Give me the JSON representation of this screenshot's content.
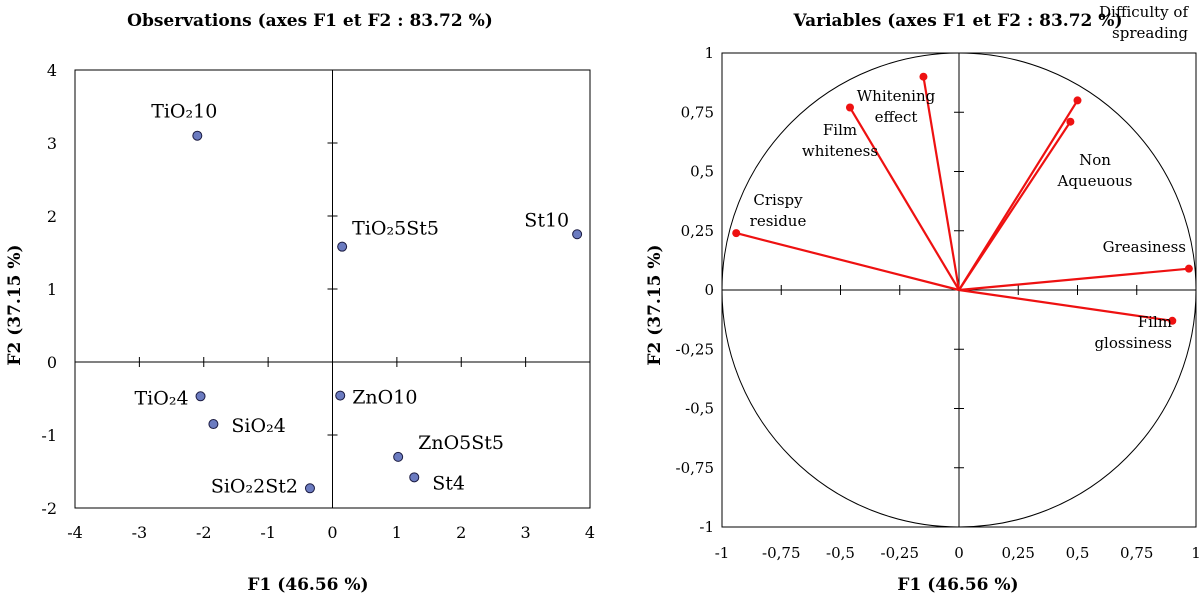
{
  "chart_data": [
    {
      "type": "scatter",
      "title": "Observations (axes F1 et F2 : 83.72 %)",
      "xlabel": "F1 (46.56 %)",
      "ylabel": "F2 (37.15 %)",
      "xlim": [
        -4,
        4
      ],
      "ylim": [
        -2,
        4
      ],
      "x_ticks": [
        "-4",
        "-3",
        "-2",
        "-1",
        "0",
        "1",
        "2",
        "3",
        "4"
      ],
      "y_ticks": [
        "-2",
        "-1",
        "0",
        "1",
        "2",
        "3",
        "4"
      ],
      "marker_color": "#6b7bc0",
      "grid": false,
      "points": [
        {
          "label": "TiO₂10",
          "x": -2.1,
          "y": 3.1
        },
        {
          "label": "TiO₂5St5",
          "x": 0.15,
          "y": 1.58
        },
        {
          "label": "St10",
          "x": 3.8,
          "y": 1.75
        },
        {
          "label": "TiO₂4",
          "x": -2.05,
          "y": -0.47
        },
        {
          "label": "SiO₂4",
          "x": -1.85,
          "y": -0.85
        },
        {
          "label": "ZnO10",
          "x": 0.12,
          "y": -0.46
        },
        {
          "label": "ZnO5St5",
          "x": 1.02,
          "y": -1.3
        },
        {
          "label": "St4",
          "x": 1.27,
          "y": -1.58
        },
        {
          "label": "SiO₂2St2",
          "x": -0.35,
          "y": -1.73
        }
      ]
    },
    {
      "type": "scatter",
      "subtype": "correlation-circle",
      "title": "Variables (axes F1 et F2 : 83.72 %)",
      "xlabel": "F1 (46.56 %)",
      "ylabel": "F2 (37.15 %)",
      "xlim": [
        -1,
        1
      ],
      "ylim": [
        -1,
        1
      ],
      "x_ticks": [
        "-1",
        "-0,75",
        "-0,5",
        "-0,25",
        "0",
        "0,25",
        "0,5",
        "0,75",
        "1"
      ],
      "y_ticks": [
        "-1",
        "-0,75",
        "-0,5",
        "-0,25",
        "0",
        "0,25",
        "0,5",
        "0,75",
        "1"
      ],
      "vector_color": "#ee1111",
      "grid": false,
      "variables": [
        {
          "label": [
            "Difficulty of",
            "spreading"
          ],
          "x": 0.5,
          "y": 0.8
        },
        {
          "label": [
            "Non",
            "Aqueuous"
          ],
          "x": 0.47,
          "y": 0.71
        },
        {
          "label": [
            "Whitening",
            "effect"
          ],
          "x": -0.15,
          "y": 0.9
        },
        {
          "label": [
            "Film",
            "whiteness"
          ],
          "x": -0.46,
          "y": 0.77
        },
        {
          "label": [
            "Crispy",
            "residue"
          ],
          "x": -0.94,
          "y": 0.24
        },
        {
          "label": [
            "Greasiness"
          ],
          "x": 0.97,
          "y": 0.09
        },
        {
          "label": [
            "Film",
            "glossiness"
          ],
          "x": 0.9,
          "y": -0.13
        }
      ]
    }
  ]
}
